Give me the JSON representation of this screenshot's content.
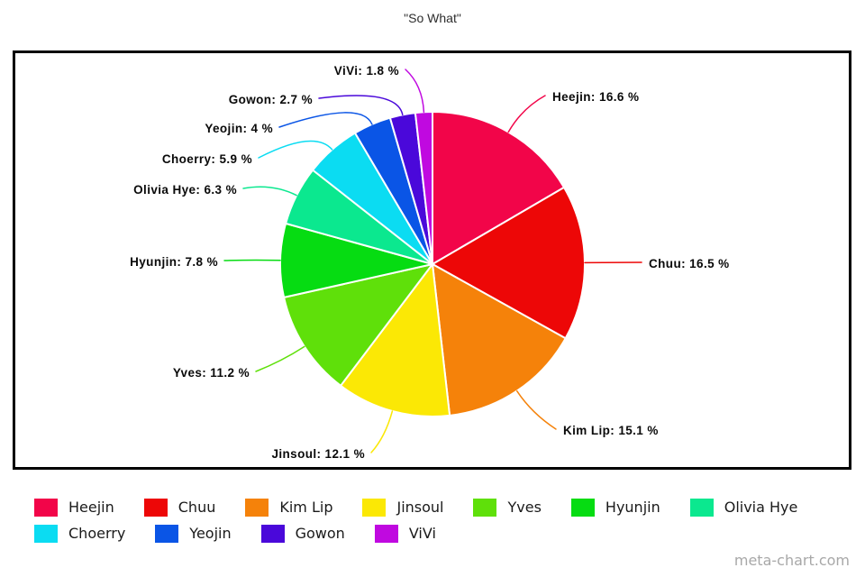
{
  "page": {
    "title": "\"So What\"",
    "watermark": "meta-chart.com"
  },
  "chart_data": {
    "type": "pie",
    "title": "\"So What\"",
    "start_angle_deg": 0,
    "direction": "clockwise",
    "legend_position": "bottom",
    "total": 100,
    "slices": [
      {
        "name": "Heejin",
        "value": 16.6,
        "label": "Heejin: 16.6 %",
        "color": "#F20549"
      },
      {
        "name": "Chuu",
        "value": 16.5,
        "label": "Chuu: 16.5 %",
        "color": "#ED0707"
      },
      {
        "name": "Kim Lip",
        "value": 15.1,
        "label": "Kim Lip: 15.1 %",
        "color": "#F5820A"
      },
      {
        "name": "Jinsoul",
        "value": 12.1,
        "label": "Jinsoul: 12.1 %",
        "color": "#FBE805"
      },
      {
        "name": "Yves",
        "value": 11.2,
        "label": "Yves: 11.2 %",
        "color": "#5FE00A"
      },
      {
        "name": "Hyunjin",
        "value": 7.8,
        "label": "Hyunjin: 7.8 %",
        "color": "#06DC12"
      },
      {
        "name": "Olivia Hye",
        "value": 6.3,
        "label": "Olivia Hye: 6.3 %",
        "color": "#0BE88F"
      },
      {
        "name": "Choerry",
        "value": 5.9,
        "label": "Choerry: 5.9 %",
        "color": "#0BDCF2"
      },
      {
        "name": "Yeojin",
        "value": 4,
        "label": "Yeojin: 4 %",
        "color": "#0A55E6"
      },
      {
        "name": "Gowon",
        "value": 2.7,
        "label": "Gowon: 2.7 %",
        "color": "#4A08DA"
      },
      {
        "name": "ViVi",
        "value": 1.8,
        "label": "ViVi: 1.8 %",
        "color": "#C009E0"
      }
    ],
    "legend_rows": [
      7,
      4
    ]
  }
}
